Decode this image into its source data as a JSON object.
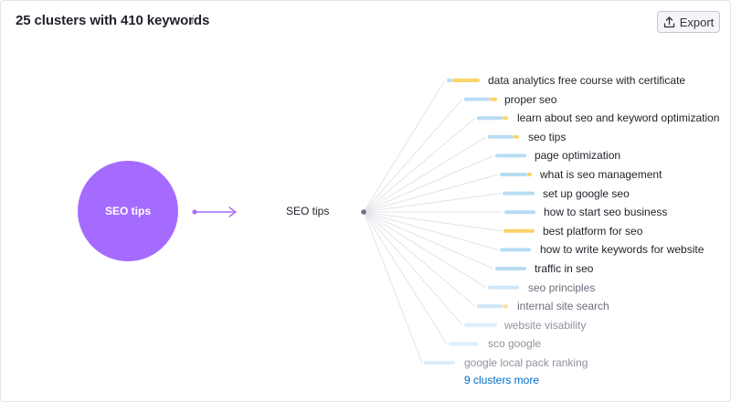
{
  "header": {
    "title": "25 clusters with 410 keywords",
    "info_icon": "info-icon",
    "export_label": "Export",
    "export_icon": "upload-icon"
  },
  "cluster": {
    "bubble_label": "SEO tips",
    "root_label": "SEO tips",
    "bubble_color": "#a56bff"
  },
  "keywords": [
    {
      "text": "data analytics free course with certificate",
      "emphasis": "high"
    },
    {
      "text": "proper seo",
      "emphasis": "high"
    },
    {
      "text": "learn about seo and keyword optimization",
      "emphasis": "high"
    },
    {
      "text": "seo tips",
      "emphasis": "high"
    },
    {
      "text": "page optimization",
      "emphasis": "high"
    },
    {
      "text": "what is seo management",
      "emphasis": "high"
    },
    {
      "text": "set up google seo",
      "emphasis": "high"
    },
    {
      "text": "how to start seo business",
      "emphasis": "high"
    },
    {
      "text": "best platform for seo",
      "emphasis": "high"
    },
    {
      "text": "how to write keywords for website",
      "emphasis": "high"
    },
    {
      "text": "traffic in seo",
      "emphasis": "high"
    },
    {
      "text": "seo principles",
      "emphasis": "mid"
    },
    {
      "text": "internal site search",
      "emphasis": "mid"
    },
    {
      "text": "website visability",
      "emphasis": "low"
    },
    {
      "text": "sco google",
      "emphasis": "low"
    },
    {
      "text": "google local pack ranking",
      "emphasis": "low"
    }
  ],
  "more_link": "9 clusters more",
  "colors": {
    "bar_blue": "#b9dcf5",
    "bar_yellow": "#fbd469",
    "link": "#006dca",
    "arrow": "#a56bff"
  }
}
